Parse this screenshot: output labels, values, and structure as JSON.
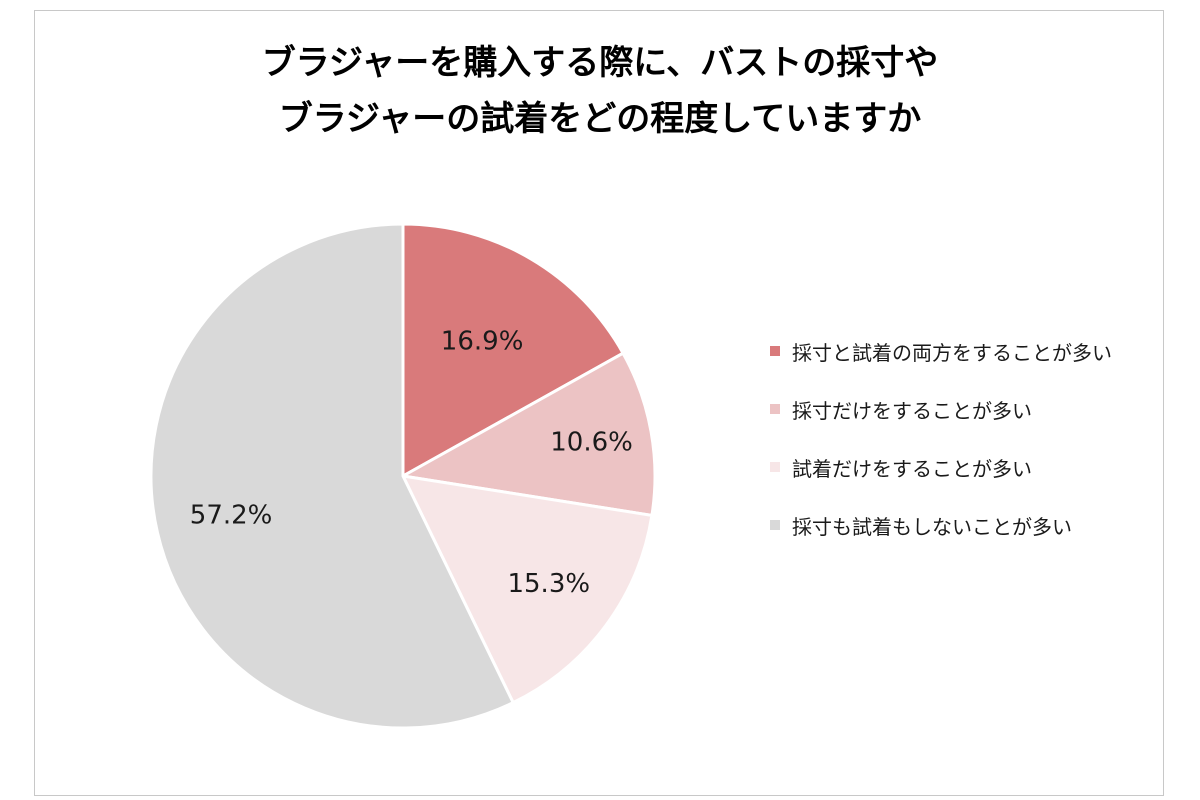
{
  "title_lines": [
    "ブラジャーを購入する際に、バストの採寸や",
    "ブラジャーの試着をどの程度していますか"
  ],
  "chart_data": {
    "type": "pie",
    "title": "ブラジャーを購入する際に、バストの採寸やブラジャーの試着をどの程度していますか",
    "start_angle_deg": 0,
    "direction": "clockwise",
    "legend_position": "right",
    "slices": [
      {
        "label": "採寸と試着の両方をすることが多い",
        "value": 16.9,
        "display": "16.9%",
        "color": "#d97a7b"
      },
      {
        "label": "採寸だけをすることが多い",
        "value": 10.6,
        "display": "10.6%",
        "color": "#ecc3c4"
      },
      {
        "label": "試着だけをすることが多い",
        "value": 15.3,
        "display": "15.3%",
        "color": "#f7e6e7"
      },
      {
        "label": "採寸も試着もしないことが多い",
        "value": 57.2,
        "display": "57.2%",
        "color": "#d9d9d9"
      }
    ]
  }
}
